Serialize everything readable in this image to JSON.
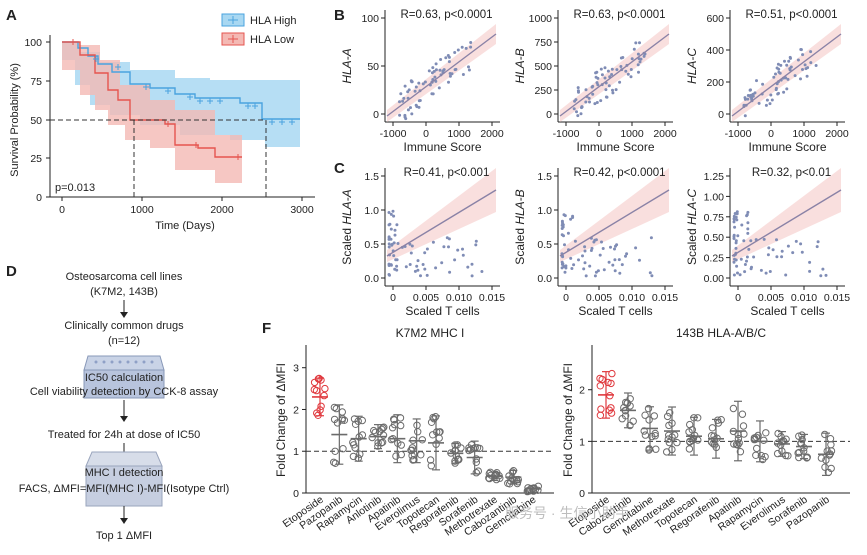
{
  "panels": {
    "A": "A",
    "B": "B",
    "C": "C",
    "D": "D",
    "F": "F"
  },
  "panelA": {
    "legend": [
      "HLA High",
      "HLA Low"
    ],
    "ylabel": "Survival Probability (%)",
    "xlabel": "Time (Days)",
    "pvalue": "p=0.013",
    "xticks": [
      "0",
      "1000",
      "2000",
      "3000"
    ],
    "yticks": [
      "0",
      "25",
      "50",
      "75",
      "100"
    ],
    "colors": {
      "high": "#4aa3df",
      "high_fill": "#a9d8f2",
      "low": "#e5554f",
      "low_fill": "#f4b9b4"
    }
  },
  "panelB": {
    "xlabel": "Immune Score",
    "plots": [
      {
        "ylabel": "HLA-A",
        "stat": "R=0.63, p<0.0001",
        "yticks": [
          "0",
          "50",
          "100"
        ],
        "xticks": [
          "-1000",
          "0",
          "1000",
          "2000"
        ]
      },
      {
        "ylabel": "HLA-B",
        "stat": "R=0.63, p<0.0001",
        "yticks": [
          "0",
          "250",
          "500",
          "750",
          "1000"
        ],
        "xticks": [
          "-1000",
          "0",
          "1000",
          "2000"
        ]
      },
      {
        "ylabel": "HLA-C",
        "stat": "R=0.51, p<0.0001",
        "yticks": [
          "0",
          "200",
          "400",
          "600"
        ],
        "xticks": [
          "-1000",
          "0",
          "1000",
          "2000"
        ]
      }
    ]
  },
  "panelC": {
    "xlabel": "Scaled T cells",
    "plots": [
      {
        "ylabel_prefix": "Scaled ",
        "ylabel_gene": "HLA-A",
        "stat": "R=0.41, p<0.001",
        "yticks": [
          "0.0",
          "0.5",
          "1.0",
          "1.5"
        ],
        "xticks": [
          "0",
          "0.005",
          "0.010",
          "0.015"
        ]
      },
      {
        "ylabel_prefix": "Scaled ",
        "ylabel_gene": "HLA-B",
        "stat": "R=0.42, p<0.0001",
        "yticks": [
          "0.0",
          "0.5",
          "1.0",
          "1.5"
        ],
        "xticks": [
          "0",
          "0.005",
          "0.010",
          "0.015"
        ]
      },
      {
        "ylabel_prefix": "Scaled ",
        "ylabel_gene": "HLA-C",
        "stat": "R=0.32, p<0.01",
        "yticks": [
          "0.00",
          "0.25",
          "0.50",
          "0.75",
          "1.00",
          "1.25"
        ],
        "xticks": [
          "0",
          "0.005",
          "0.010",
          "0.015"
        ]
      }
    ]
  },
  "panelD": {
    "steps": [
      "Osteosarcoma cell lines",
      "(K7M2, 143B)",
      "Clinically common drugs",
      "(n=12)",
      "IC50 calculation",
      "Cell viability detection by CCK-8 assay",
      "Treated for 24h at dose of IC50",
      "MHC I detection",
      "FACS, ΔMFI=MFI(MHC I)-MFI(Isotype Ctrl)",
      "Top 1 ΔMFI"
    ]
  },
  "panelF": {
    "ylabel": "Fold Change of ΔMFI",
    "left": {
      "title": "K7M2 MHC I",
      "yticks": [
        "0",
        "1",
        "2",
        "3"
      ],
      "drugs": [
        "Etoposide",
        "Pazopanib",
        "Rapamycin",
        "Anlotinib",
        "Apatinib",
        "Everolimus",
        "Topotecan",
        "Regorafenib",
        "Sorafenib",
        "Methotrexate",
        "Cabozantinib",
        "Gemcitabine"
      ],
      "means": [
        2.3,
        1.4,
        1.3,
        1.35,
        1.3,
        1.25,
        1.2,
        0.95,
        0.85,
        0.4,
        0.38,
        0.1
      ]
    },
    "right": {
      "title": "143B HLA-A/B/C",
      "yticks": [
        "0",
        "1",
        "2"
      ],
      "drugs": [
        "Etoposide",
        "Cabozantinib",
        "Gemcitabine",
        "Methotrexate",
        "Topotecan",
        "Regorafenib",
        "Apatinib",
        "Rapamycin",
        "Everolimus",
        "Sorafenib",
        "Pazopanib"
      ],
      "means": [
        1.9,
        1.6,
        1.25,
        1.2,
        1.1,
        1.05,
        1.2,
        1.0,
        0.95,
        0.9,
        0.75
      ]
    },
    "highlight_color": "#e0393e"
  },
  "watermark": "服务号 · 生信小助手"
}
